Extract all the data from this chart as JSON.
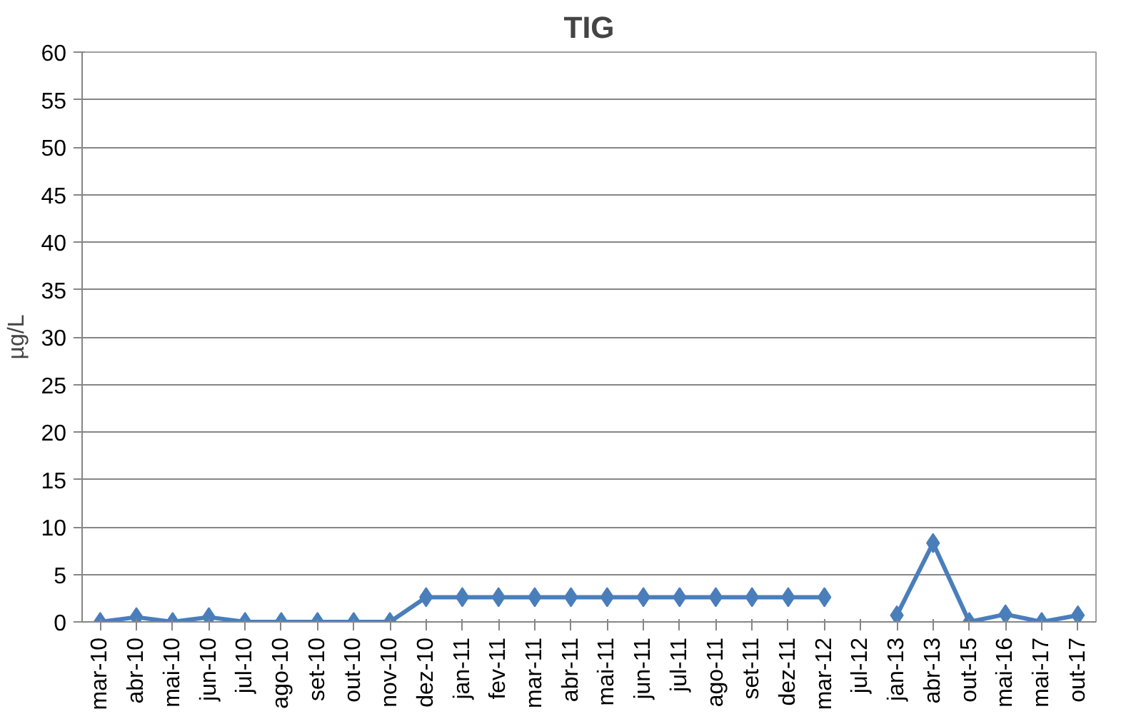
{
  "chart_data": {
    "type": "line",
    "title": "TIG",
    "ylabel": "µg/L",
    "categories": [
      "mar-10",
      "abr-10",
      "mai-10",
      "jun-10",
      "jul-10",
      "ago-10",
      "set-10",
      "out-10",
      "nov-10",
      "dez-10",
      "jan-11",
      "fev-11",
      "mar-11",
      "abr-11",
      "mai-11",
      "jun-11",
      "jul-11",
      "ago-11",
      "set-11",
      "dez-11",
      "mar-12",
      "jul-12",
      "jan-13",
      "abr-13",
      "out-15",
      "mai-16",
      "mai-17",
      "out-17"
    ],
    "series": [
      {
        "color": "#4a7ebb",
        "values": [
          0,
          0.5,
          0,
          0.5,
          0,
          0,
          0,
          0,
          0,
          2.6,
          2.6,
          2.6,
          2.6,
          2.6,
          2.6,
          2.6,
          2.6,
          2.6,
          2.6,
          2.6,
          2.6,
          null,
          0.7,
          8.3,
          0,
          0.8,
          0,
          0.7
        ]
      }
    ],
    "ylim": [
      0,
      60
    ],
    "yticks": [
      0,
      5,
      10,
      15,
      20,
      25,
      30,
      35,
      40,
      45,
      50,
      55,
      60
    ],
    "grid": "y",
    "marker": "diamond",
    "line_style": "solid"
  }
}
